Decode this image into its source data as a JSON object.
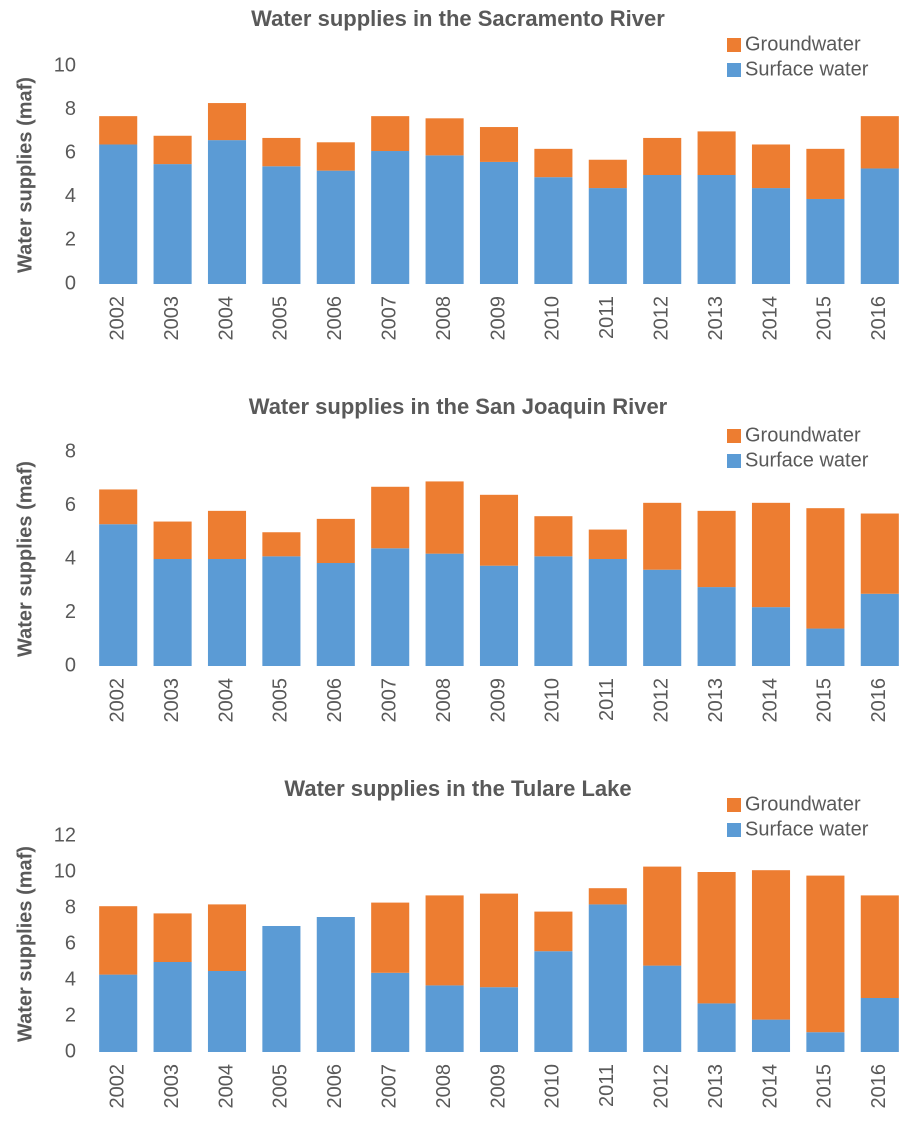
{
  "chart_data": [
    {
      "type": "stacked_bar",
      "title": "Water supplies in the Sacramento River",
      "y_label": "Water supplies (maf)",
      "categories": [
        "2002",
        "2003",
        "2004",
        "2005",
        "2006",
        "2007",
        "2008",
        "2009",
        "2010",
        "2011",
        "2012",
        "2013",
        "2014",
        "2015",
        "2016"
      ],
      "series": [
        {
          "name": "Surface water",
          "color": "#5b9bd5",
          "values": [
            6.4,
            5.5,
            6.6,
            5.4,
            5.2,
            6.1,
            5.9,
            5.6,
            4.9,
            4.4,
            5.0,
            5.0,
            4.4,
            3.9,
            5.3
          ]
        },
        {
          "name": "Groundwater",
          "color": "#ed7d31",
          "values": [
            1.3,
            1.3,
            1.7,
            1.3,
            1.3,
            1.6,
            1.7,
            1.6,
            1.3,
            1.3,
            1.7,
            2.0,
            2.0,
            2.3,
            2.4
          ]
        }
      ],
      "ylim": [
        0,
        10
      ],
      "yticks": [
        0,
        2,
        4,
        6,
        8,
        10
      ],
      "legend": "upper right"
    },
    {
      "type": "stacked_bar",
      "title": "Water supplies in the San Joaquin River",
      "y_label": "Water supplies (maf)",
      "categories": [
        "2002",
        "2003",
        "2004",
        "2005",
        "2006",
        "2007",
        "2008",
        "2009",
        "2010",
        "2011",
        "2012",
        "2013",
        "2014",
        "2015",
        "2016"
      ],
      "series": [
        {
          "name": "Surface water",
          "color": "#5b9bd5",
          "values": [
            5.3,
            4.0,
            4.0,
            4.1,
            3.85,
            4.4,
            4.2,
            3.75,
            4.1,
            4.0,
            3.6,
            2.95,
            2.2,
            1.4,
            2.7
          ]
        },
        {
          "name": "Groundwater",
          "color": "#ed7d31",
          "values": [
            1.3,
            1.4,
            1.8,
            0.9,
            1.65,
            2.3,
            2.7,
            2.65,
            1.5,
            1.1,
            2.5,
            2.85,
            3.9,
            4.5,
            3.0
          ]
        }
      ],
      "ylim": [
        0,
        8
      ],
      "yticks": [
        0,
        2,
        4,
        6,
        8
      ],
      "legend": "upper right"
    },
    {
      "type": "stacked_bar",
      "title": "Water supplies in the Tulare Lake",
      "y_label": "Water supplies (maf)",
      "categories": [
        "2002",
        "2003",
        "2004",
        "2005",
        "2006",
        "2007",
        "2008",
        "2009",
        "2010",
        "2011",
        "2012",
        "2013",
        "2014",
        "2015",
        "2016"
      ],
      "series": [
        {
          "name": "Surface water",
          "color": "#5b9bd5",
          "values": [
            4.3,
            5.0,
            4.5,
            7.0,
            7.5,
            4.4,
            3.7,
            3.6,
            5.6,
            8.2,
            4.8,
            2.7,
            1.8,
            1.1,
            3.0
          ]
        },
        {
          "name": "Groundwater",
          "color": "#ed7d31",
          "values": [
            3.8,
            2.7,
            3.7,
            0,
            0,
            3.9,
            5.0,
            5.2,
            2.2,
            0.9,
            5.5,
            7.3,
            8.3,
            8.7,
            5.7
          ]
        }
      ],
      "ylim": [
        0,
        12
      ],
      "yticks": [
        0,
        2,
        4,
        6,
        8,
        10,
        12
      ],
      "legend": "upper right"
    }
  ]
}
